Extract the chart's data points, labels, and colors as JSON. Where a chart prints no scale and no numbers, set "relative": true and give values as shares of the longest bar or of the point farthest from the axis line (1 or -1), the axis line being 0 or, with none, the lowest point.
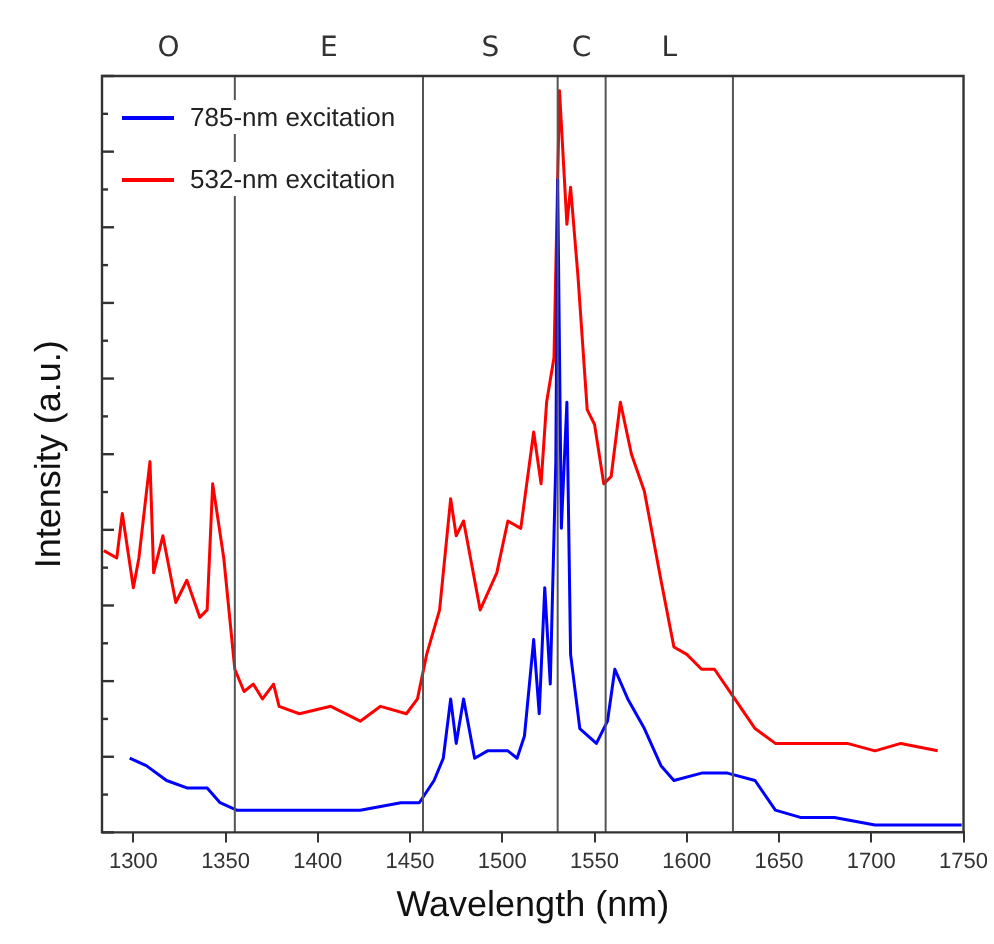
{
  "chart_data": {
    "type": "line",
    "xlabel": "Wavelength (nm)",
    "ylabel": "Intensity (a.u.)",
    "relative": true,
    "xlim": [
      1283,
      1750
    ],
    "xticks": [
      1300,
      1350,
      1400,
      1450,
      1500,
      1550,
      1600,
      1650,
      1700,
      1750
    ],
    "legend": "top left",
    "marker": "none",
    "line_style": "solid",
    "grid": false,
    "ref_lines": [
      {
        "axis": "x",
        "value": 1355,
        "color": "#555555"
      },
      {
        "axis": "x",
        "value": 1457,
        "color": "#555555"
      },
      {
        "axis": "x",
        "value": 1530,
        "color": "#555555"
      },
      {
        "axis": "x",
        "value": 1556,
        "color": "#555555"
      },
      {
        "axis": "x",
        "value": 1625,
        "color": "#555555"
      }
    ],
    "bands": [
      {
        "axis": "x",
        "from": 1283,
        "to": 1355,
        "label": "O",
        "color": "#ffffff"
      },
      {
        "axis": "x",
        "from": 1355,
        "to": 1457,
        "label": "E",
        "color": "#ffffff"
      },
      {
        "axis": "x",
        "from": 1457,
        "to": 1530,
        "label": "S",
        "color": "#ffffff"
      },
      {
        "axis": "x",
        "from": 1530,
        "to": 1556,
        "label": "C",
        "color": "#ffffff"
      },
      {
        "axis": "x",
        "from": 1556,
        "to": 1625,
        "label": "L",
        "color": "#ffffff"
      }
    ],
    "series": [
      {
        "name": "785-nm excitation",
        "color": "#0000ff",
        "x": [
          1298,
          1307,
          1318,
          1329,
          1340,
          1347,
          1356,
          1379,
          1398,
          1423,
          1445,
          1455,
          1463,
          1468,
          1472,
          1475,
          1479,
          1485,
          1492,
          1503,
          1508,
          1512,
          1517,
          1520,
          1523,
          1526,
          1529,
          1530,
          1532,
          1535,
          1537,
          1542,
          1551,
          1557,
          1561,
          1568,
          1577,
          1586,
          1593,
          1608,
          1622,
          1637,
          1648,
          1662,
          1680,
          1702,
          1724,
          1749
        ],
        "values": [
          0.1,
          0.09,
          0.07,
          0.06,
          0.06,
          0.04,
          0.03,
          0.03,
          0.03,
          0.03,
          0.04,
          0.04,
          0.07,
          0.1,
          0.18,
          0.12,
          0.18,
          0.1,
          0.11,
          0.11,
          0.1,
          0.13,
          0.26,
          0.16,
          0.33,
          0.2,
          0.5,
          0.88,
          0.41,
          0.58,
          0.24,
          0.14,
          0.12,
          0.15,
          0.22,
          0.18,
          0.14,
          0.09,
          0.07,
          0.08,
          0.08,
          0.07,
          0.03,
          0.02,
          0.02,
          0.01,
          0.01,
          0.01
        ]
      },
      {
        "name": "532-nm excitation",
        "color": "#ff0000",
        "x": [
          1284,
          1291,
          1294,
          1300,
          1303,
          1309,
          1311,
          1316,
          1323,
          1329,
          1336,
          1340,
          1343,
          1349,
          1355,
          1360,
          1365,
          1370,
          1376,
          1379,
          1390,
          1407,
          1423,
          1434,
          1448,
          1454,
          1459,
          1466,
          1472,
          1475,
          1479,
          1488,
          1497,
          1503,
          1510,
          1517,
          1521,
          1524,
          1528,
          1531,
          1535,
          1537,
          1541,
          1546,
          1550,
          1555,
          1559,
          1564,
          1570,
          1577,
          1586,
          1593,
          1600,
          1608,
          1615,
          1626,
          1637,
          1648,
          1662,
          1687,
          1702,
          1716,
          1736
        ],
        "values": [
          0.38,
          0.37,
          0.43,
          0.33,
          0.37,
          0.5,
          0.35,
          0.4,
          0.31,
          0.34,
          0.29,
          0.3,
          0.47,
          0.37,
          0.22,
          0.19,
          0.2,
          0.18,
          0.2,
          0.17,
          0.16,
          0.17,
          0.15,
          0.17,
          0.16,
          0.18,
          0.24,
          0.3,
          0.45,
          0.4,
          0.42,
          0.3,
          0.35,
          0.42,
          0.41,
          0.54,
          0.47,
          0.58,
          0.64,
          1,
          0.82,
          0.87,
          0.75,
          0.57,
          0.55,
          0.47,
          0.48,
          0.58,
          0.51,
          0.46,
          0.34,
          0.25,
          0.24,
          0.22,
          0.22,
          0.18,
          0.14,
          0.12,
          0.12,
          0.12,
          0.11,
          0.12,
          0.11
        ]
      }
    ]
  }
}
